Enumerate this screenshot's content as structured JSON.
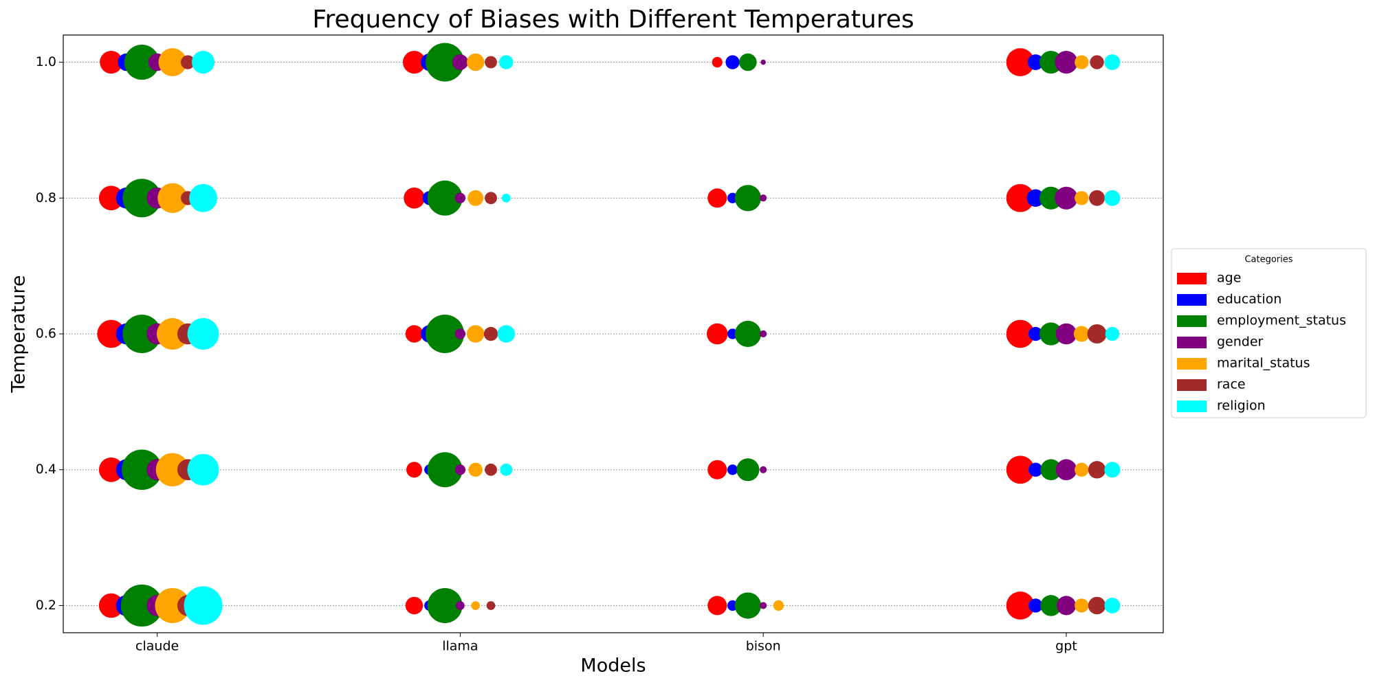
{
  "chart_data": {
    "type": "bubble",
    "title": "Frequency of Biases with Different Temperatures",
    "x_label": "Models",
    "y_label": "Temperature",
    "categories": [
      "claude",
      "llama",
      "bison",
      "gpt"
    ],
    "temperatures": [
      1.0,
      0.8,
      0.6,
      0.4,
      0.2
    ],
    "ylim": [
      0.16,
      1.04
    ],
    "yticks": [
      {
        "value": 0.2,
        "label": "0.2"
      },
      {
        "value": 0.4,
        "label": "0.4"
      },
      {
        "value": 0.6,
        "label": "0.6"
      },
      {
        "value": 0.8,
        "label": "0.8"
      },
      {
        "value": 1.0,
        "label": "1.0"
      }
    ],
    "grid": true,
    "legend_title": "Categories",
    "legend_position": "right",
    "series": [
      {
        "name": "age",
        "color": "#ff0000",
        "sizes": [
          [
            169,
            196,
            256,
            196,
            196
          ],
          [
            169,
            144,
            100,
            81,
            100
          ],
          [
            36,
            121,
            144,
            121,
            121
          ],
          [
            256,
            256,
            256,
            256,
            256
          ]
        ]
      },
      {
        "name": "education",
        "color": "#0000ff",
        "sizes": [
          [
            100,
            144,
            144,
            144,
            144
          ],
          [
            100,
            64,
            100,
            36,
            36
          ],
          [
            64,
            36,
            36,
            36,
            36
          ],
          [
            81,
            100,
            64,
            64,
            64
          ]
        ]
      },
      {
        "name": "employment_status",
        "color": "#008000",
        "sizes": [
          [
            400,
            484,
            484,
            529,
            576
          ],
          [
            484,
            400,
            484,
            400,
            400
          ],
          [
            100,
            225,
            225,
            169,
            225
          ],
          [
            169,
            169,
            169,
            144,
            144
          ]
        ]
      },
      {
        "name": "gender",
        "color": "#800080",
        "sizes": [
          [
            100,
            144,
            144,
            144,
            144
          ],
          [
            81,
            36,
            36,
            36,
            25
          ],
          [
            9,
            16,
            16,
            16,
            16
          ],
          [
            169,
            169,
            144,
            144,
            121
          ]
        ]
      },
      {
        "name": "marital_status",
        "color": "#ffa500",
        "sizes": [
          [
            256,
            289,
            324,
            361,
            400
          ],
          [
            100,
            81,
            100,
            64,
            25
          ],
          [
            null,
            null,
            null,
            null,
            36
          ],
          [
            64,
            64,
            81,
            64,
            64
          ]
        ]
      },
      {
        "name": "race",
        "color": "#a52a2a",
        "sizes": [
          [
            64,
            64,
            144,
            144,
            144
          ],
          [
            49,
            49,
            64,
            49,
            25
          ],
          [
            null,
            null,
            null,
            null,
            null
          ],
          [
            64,
            81,
            121,
            100,
            100
          ]
        ]
      },
      {
        "name": "religion",
        "color": "#00ffff",
        "sizes": [
          [
            169,
            256,
            324,
            324,
            484
          ],
          [
            64,
            25,
            100,
            49,
            null
          ],
          [
            null,
            null,
            null,
            null,
            null
          ],
          [
            81,
            81,
            64,
            81,
            81
          ]
        ]
      }
    ]
  }
}
